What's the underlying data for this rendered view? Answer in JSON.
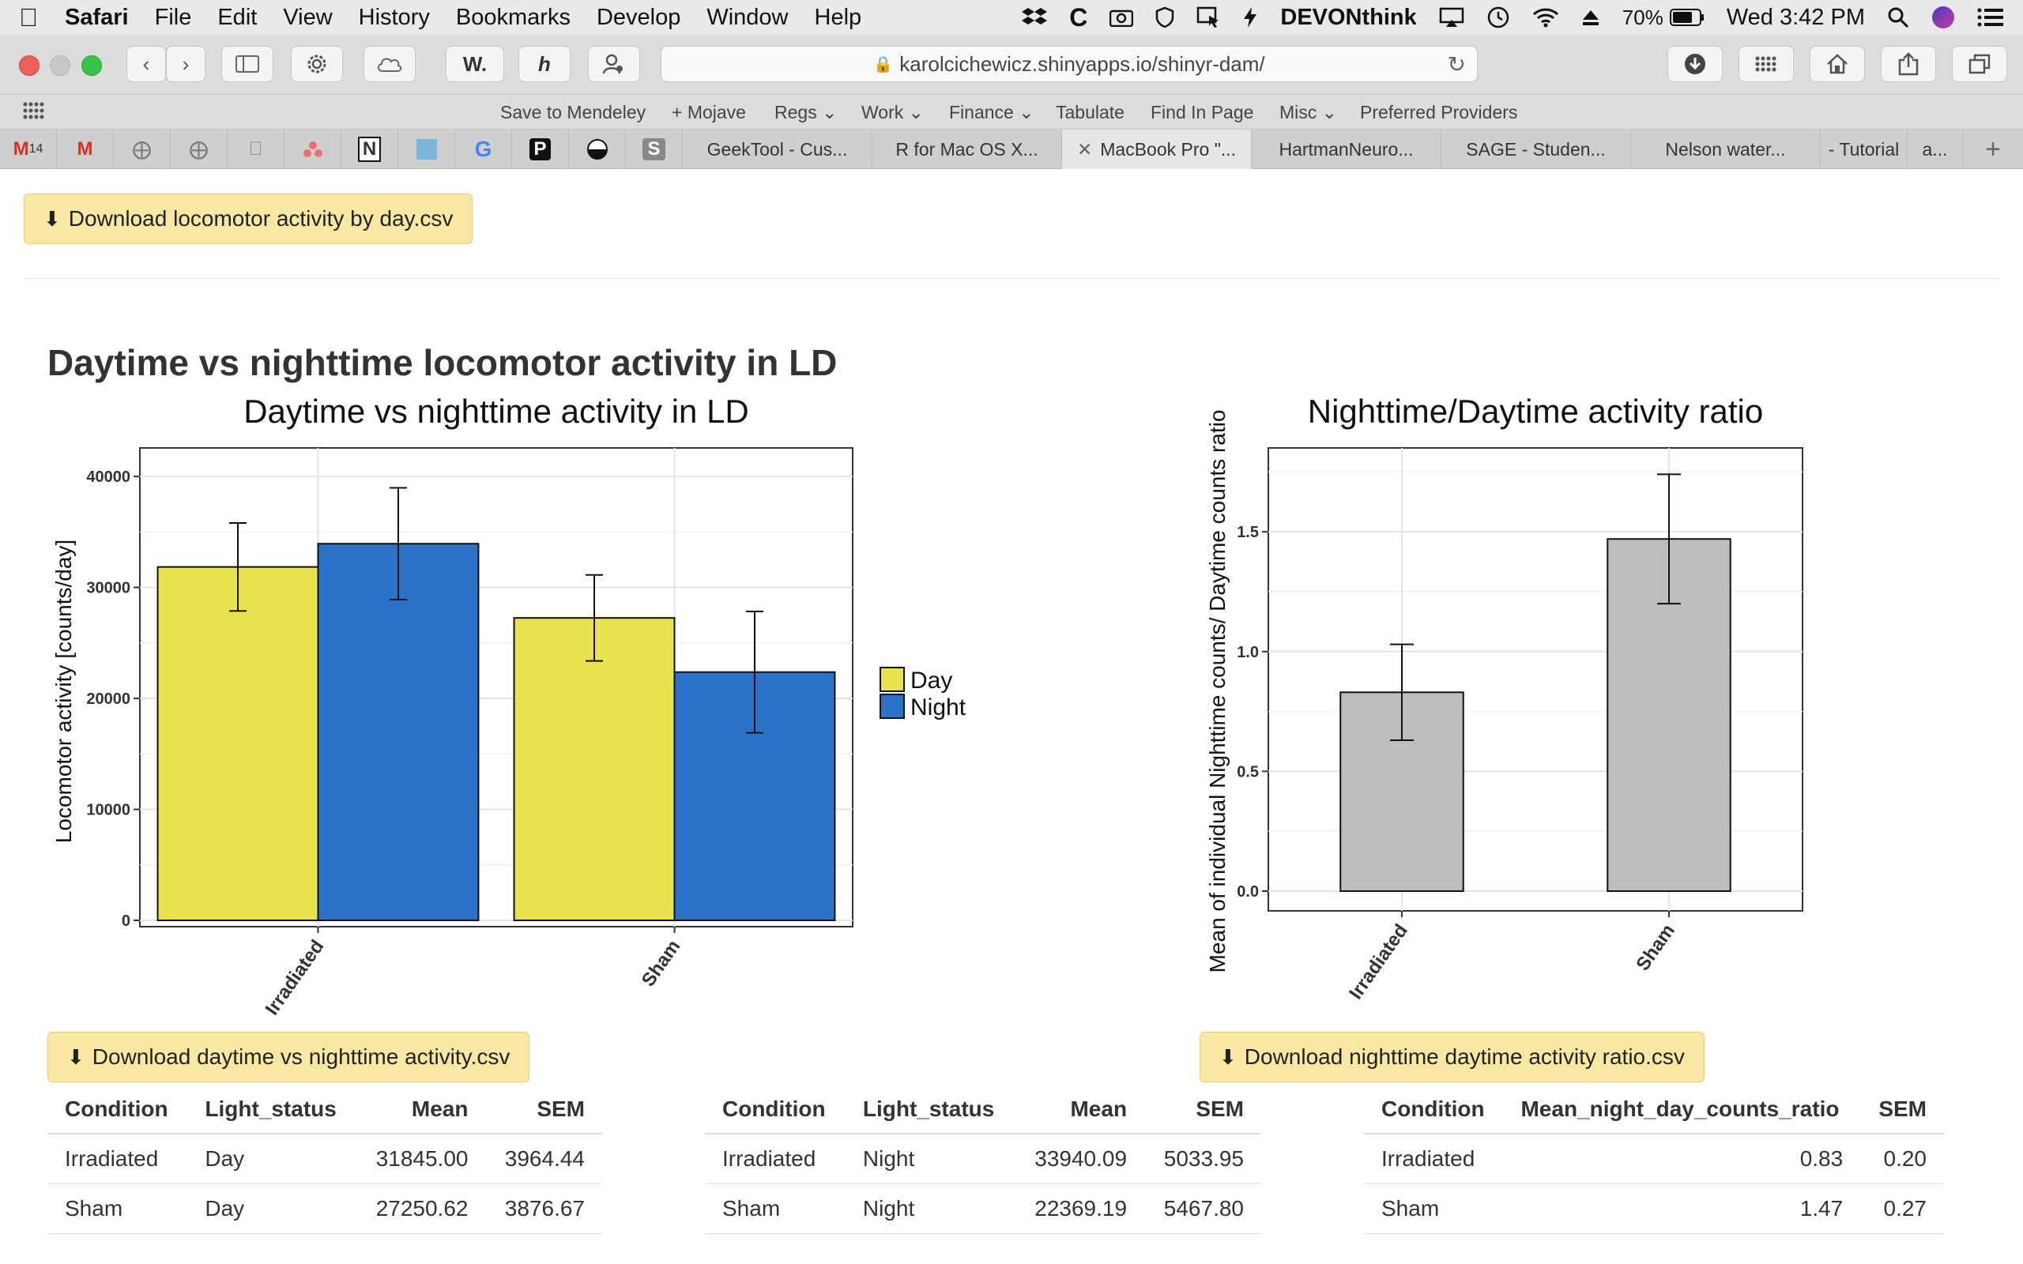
{
  "menubar": {
    "app": "Safari",
    "items": [
      "File",
      "Edit",
      "View",
      "History",
      "Bookmarks",
      "Develop",
      "Window",
      "Help"
    ],
    "devonthink": "DEVONthink",
    "battery": "70%",
    "clock": "Wed 3:42 PM"
  },
  "toolbar": {
    "w_label": "W.",
    "url": "karolcichewicz.shinyapps.io/shinyr-dam/"
  },
  "bookmarks": [
    "Save to Mendeley",
    "+ Mojave",
    "Regs",
    "Work",
    "Finance",
    "Tabulate",
    "Find In Page",
    "Misc",
    "Preferred Providers"
  ],
  "tabs": {
    "pinned_badge": "14",
    "items": [
      "GeekTool - Cus...",
      "R for Mac OS X...",
      "MacBook Pro \"...",
      "HartmanNeuro...",
      "SAGE - Studen...",
      "Nelson water...",
      "- Tutorial",
      "a..."
    ]
  },
  "page": {
    "top_download": "Download locomotor activity by day.csv",
    "section_title": "Daytime vs nighttime locomotor activity in LD",
    "download_left": "Download daytime vs nighttime activity.csv",
    "download_right": "Download nighttime daytime activity ratio.csv"
  },
  "chart_data": [
    {
      "type": "bar",
      "title": "Daytime vs nighttime activity in LD",
      "ylabel": "Locomotor activity [counts/day]",
      "xlabel": "",
      "categories": [
        "Irradiated",
        "Sham"
      ],
      "series": [
        {
          "name": "Day",
          "values": [
            31845.0,
            27250.62
          ],
          "sem": [
            3964.44,
            3876.67
          ],
          "color": "#e8e44f"
        },
        {
          "name": "Night",
          "values": [
            33940.09,
            22369.19
          ],
          "sem": [
            5033.95,
            5467.8
          ],
          "color": "#2b73c8"
        }
      ],
      "ylim": [
        0,
        42000
      ],
      "yticks": [
        "0",
        "10000",
        "20000",
        "30000",
        "40000"
      ],
      "legend": "right",
      "grid": true
    },
    {
      "type": "bar",
      "title": "Nighttime/Daytime activity ratio",
      "ylabel": "Mean of individual Nighttime counts/ Daytime counts ratio",
      "xlabel": "",
      "categories": [
        "Irradiated",
        "Sham"
      ],
      "values": [
        0.83,
        1.47
      ],
      "sem": [
        0.2,
        0.27
      ],
      "color": "#bdbdbd",
      "ylim": [
        0,
        1.85
      ],
      "yticks": [
        "0.0",
        "0.5",
        "1.0",
        "1.5"
      ],
      "grid": true
    }
  ],
  "tables": {
    "day": {
      "headers": [
        "Condition",
        "Light_status",
        "Mean",
        "SEM"
      ],
      "rows": [
        [
          "Irradiated",
          "Day",
          "31845.00",
          "3964.44"
        ],
        [
          "Sham",
          "Day",
          "27250.62",
          "3876.67"
        ]
      ]
    },
    "night": {
      "headers": [
        "Condition",
        "Light_status",
        "Mean",
        "SEM"
      ],
      "rows": [
        [
          "Irradiated",
          "Night",
          "33940.09",
          "5033.95"
        ],
        [
          "Sham",
          "Night",
          "22369.19",
          "5467.80"
        ]
      ]
    },
    "ratio": {
      "headers": [
        "Condition",
        "Mean_night_day_counts_ratio",
        "SEM"
      ],
      "rows": [
        [
          "Irradiated",
          "0.83",
          "0.20"
        ],
        [
          "Sham",
          "1.47",
          "0.27"
        ]
      ]
    }
  }
}
